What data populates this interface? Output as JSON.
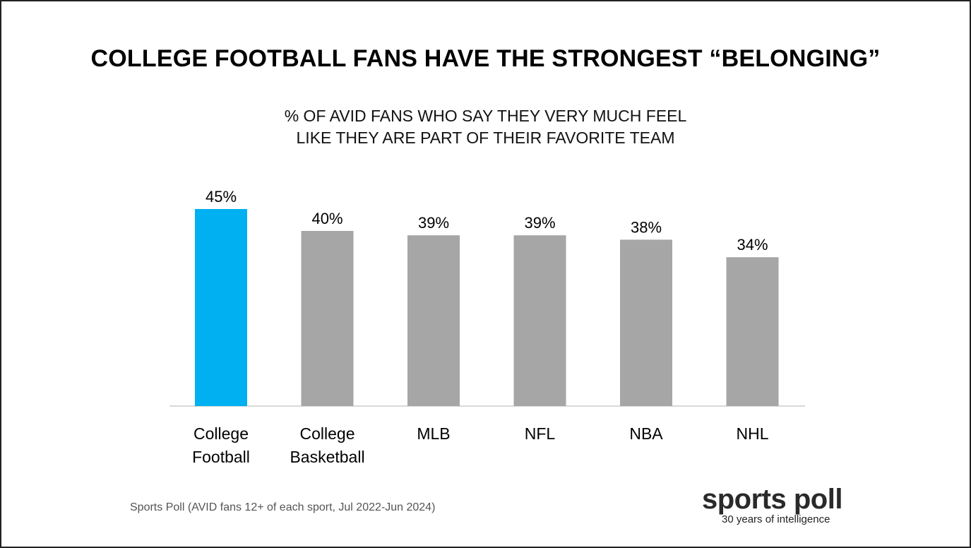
{
  "page": {
    "title": "COLLEGE FOOTBALL FANS HAVE THE STRONGEST “BELONGING”",
    "subtitle_lines": [
      "% OF AVID FANS WHO SAY THEY VERY MUCH FEEL",
      "LIKE THEY ARE PART OF THEIR FAVORITE TEAM"
    ],
    "source": "Sports Poll (AVID fans 12+ of each sport, Jul 2022-Jun 2024)",
    "logo": {
      "name": "sports poll",
      "tagline": "30 years of intelligence"
    }
  },
  "colors": {
    "highlight": "#00b0f0",
    "default_bar": "#a6a6a6",
    "baseline": "#d9d9d9"
  },
  "chart_data": {
    "type": "bar",
    "categories": [
      [
        "College",
        "Football"
      ],
      [
        "College",
        "Basketball"
      ],
      [
        "MLB"
      ],
      [
        "NFL"
      ],
      [
        "NBA"
      ],
      [
        "NHL"
      ]
    ],
    "values": [
      45,
      40,
      39,
      39,
      38,
      34
    ],
    "data_labels": [
      "45%",
      "40%",
      "39%",
      "39%",
      "38%",
      "34%"
    ],
    "highlight_index": 0,
    "ylim": [
      0,
      50
    ],
    "grid": false,
    "legend": "none"
  }
}
